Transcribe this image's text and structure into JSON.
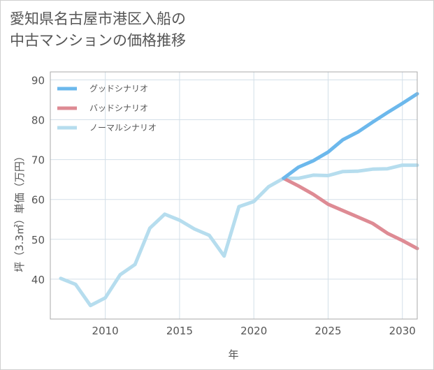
{
  "title_lines": [
    "愛知県名古屋市港区入船の",
    "中古マンションの価格推移"
  ],
  "chart_data": {
    "type": "line",
    "title": "愛知県名古屋市港区入船の中古マンションの価格推移",
    "xlabel": "年",
    "ylabel": "坪（3.3㎡）単価（万円）",
    "xlim": [
      2006.3,
      2031
    ],
    "ylim": [
      30,
      92
    ],
    "xticks": [
      2010,
      2015,
      2020,
      2025,
      2030
    ],
    "yticks": [
      40,
      50,
      60,
      70,
      80,
      90
    ],
    "grid": true,
    "legend_position": "top-left",
    "series": [
      {
        "name": "グッドシナリオ",
        "color": "#6cb8ec",
        "x": [
          2022,
          2023,
          2024,
          2025,
          2026,
          2027,
          2028,
          2029,
          2030,
          2031
        ],
        "values": [
          65.3,
          68.1,
          69.7,
          71.9,
          75.0,
          76.9,
          79.4,
          81.8,
          84.1,
          86.5
        ]
      },
      {
        "name": "バッドシナリオ",
        "color": "#de8b94",
        "x": [
          2022,
          2023,
          2024,
          2025,
          2026,
          2027,
          2028,
          2029,
          2030,
          2031
        ],
        "values": [
          65.3,
          63.4,
          61.3,
          58.8,
          57.2,
          55.6,
          54.0,
          51.5,
          49.7,
          47.7
        ]
      },
      {
        "name": "ノーマルシナリオ",
        "color": "#b6ddee",
        "x": [
          2007,
          2008,
          2009,
          2010,
          2011,
          2012,
          2013,
          2014,
          2015,
          2016,
          2017,
          2018,
          2019,
          2020,
          2021,
          2022,
          2023,
          2024,
          2025,
          2026,
          2027,
          2028,
          2029,
          2030,
          2031
        ],
        "values": [
          40.2,
          38.7,
          33.4,
          35.3,
          41.1,
          43.7,
          52.8,
          56.3,
          54.8,
          52.6,
          51.0,
          45.8,
          58.2,
          59.5,
          63.2,
          65.3,
          65.3,
          66.1,
          66.0,
          67.0,
          67.1,
          67.6,
          67.7,
          68.6,
          68.6
        ]
      }
    ]
  }
}
